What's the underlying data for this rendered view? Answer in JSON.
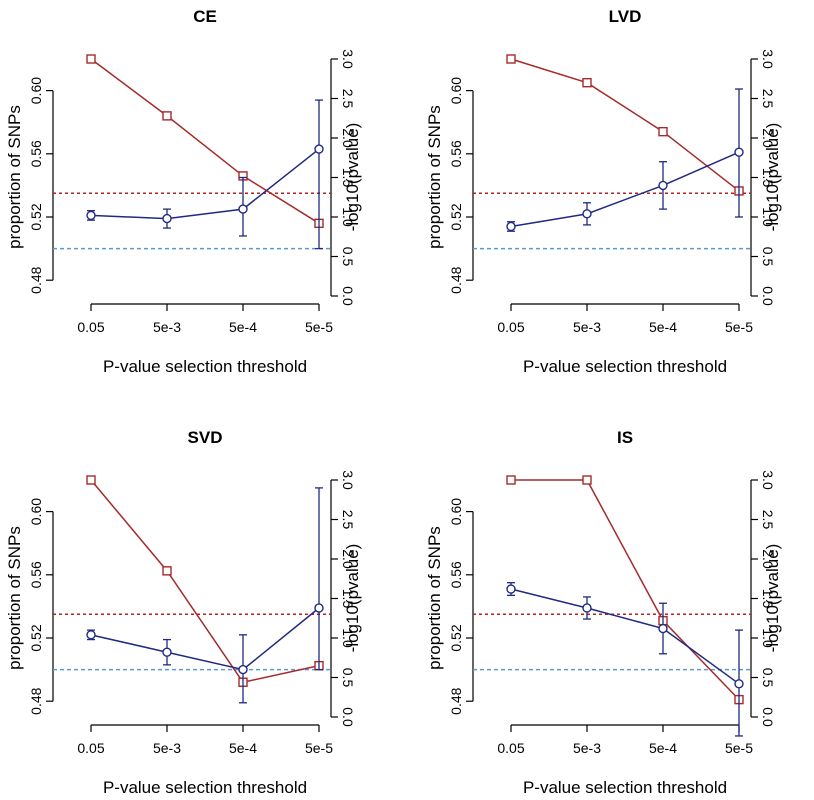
{
  "colors": {
    "red_series": "#a52a2a",
    "blue_series": "#1f2a80",
    "red_threshold": "#b22222",
    "blue_threshold": "#5b9bd5"
  },
  "chart_data": [
    {
      "type": "line",
      "title": "CE",
      "xlabel": "P-value selection threshold",
      "ylabel_left": "proportion of SNPs",
      "ylabel_right": "-log10(pvalue)",
      "categories": [
        "0.05",
        "5e-3",
        "5e-4",
        "5e-5"
      ],
      "ylim_left": [
        0.47,
        0.62
      ],
      "ylim_right": [
        0,
        3
      ],
      "left_ticks": [
        "0.48",
        "0.52",
        "0.56",
        "0.60"
      ],
      "right_ticks": [
        "0.0",
        "0.5",
        "1.0",
        "1.5",
        "2.0",
        "2.5",
        "3.0"
      ],
      "proportion": [
        {
          "value": 0.521,
          "low": 0.518,
          "high": 0.524
        },
        {
          "value": 0.519,
          "low": 0.513,
          "high": 0.525
        },
        {
          "value": 0.525,
          "low": 0.508,
          "high": 0.545
        },
        {
          "value": 0.563,
          "low": 0.5,
          "high": 0.594
        }
      ],
      "neglog10_pvalue": [
        3.0,
        2.28,
        1.52,
        0.92
      ],
      "threshold_proportion": 0.5,
      "threshold_neglog10": 1.3
    },
    {
      "type": "line",
      "title": "LVD",
      "xlabel": "P-value selection threshold",
      "ylabel_left": "proportion of SNPs",
      "ylabel_right": "-log10(pvalue)",
      "categories": [
        "0.05",
        "5e-3",
        "5e-4",
        "5e-5"
      ],
      "ylim_left": [
        0.47,
        0.62
      ],
      "ylim_right": [
        0,
        3
      ],
      "left_ticks": [
        "0.48",
        "0.52",
        "0.56",
        "0.60"
      ],
      "right_ticks": [
        "0.0",
        "0.5",
        "1.0",
        "1.5",
        "2.0",
        "2.5",
        "3.0"
      ],
      "proportion": [
        {
          "value": 0.514,
          "low": 0.511,
          "high": 0.517
        },
        {
          "value": 0.522,
          "low": 0.515,
          "high": 0.529
        },
        {
          "value": 0.54,
          "low": 0.525,
          "high": 0.555
        },
        {
          "value": 0.561,
          "low": 0.52,
          "high": 0.601
        }
      ],
      "neglog10_pvalue": [
        3.0,
        2.7,
        2.08,
        1.33
      ],
      "threshold_proportion": 0.5,
      "threshold_neglog10": 1.3
    },
    {
      "type": "line",
      "title": "SVD",
      "xlabel": "P-value selection threshold",
      "ylabel_left": "proportion of SNPs",
      "ylabel_right": "-log10(pvalue)",
      "categories": [
        "0.05",
        "5e-3",
        "5e-4",
        "5e-5"
      ],
      "ylim_left": [
        0.47,
        0.62
      ],
      "ylim_right": [
        0,
        3
      ],
      "left_ticks": [
        "0.48",
        "0.52",
        "0.56",
        "0.60"
      ],
      "right_ticks": [
        "0.0",
        "0.5",
        "1.0",
        "1.5",
        "2.0",
        "2.5",
        "3.0"
      ],
      "proportion": [
        {
          "value": 0.522,
          "low": 0.519,
          "high": 0.525
        },
        {
          "value": 0.511,
          "low": 0.503,
          "high": 0.519
        },
        {
          "value": 0.5,
          "low": 0.479,
          "high": 0.522
        },
        {
          "value": 0.539,
          "low": 0.5,
          "high": 0.615
        }
      ],
      "neglog10_pvalue": [
        3.0,
        1.85,
        0.44,
        0.65
      ],
      "threshold_proportion": 0.5,
      "threshold_neglog10": 1.3
    },
    {
      "type": "line",
      "title": "IS",
      "xlabel": "P-value selection threshold",
      "ylabel_left": "proportion of SNPs",
      "ylabel_right": "-log10(pvalue)",
      "categories": [
        "0.05",
        "5e-3",
        "5e-4",
        "5e-5"
      ],
      "ylim_left": [
        0.47,
        0.62
      ],
      "ylim_right": [
        0,
        3
      ],
      "left_ticks": [
        "0.48",
        "0.52",
        "0.56",
        "0.60"
      ],
      "right_ticks": [
        "0.0",
        "0.5",
        "1.0",
        "1.5",
        "2.0",
        "2.5",
        "3.0"
      ],
      "proportion": [
        {
          "value": 0.551,
          "low": 0.547,
          "high": 0.555
        },
        {
          "value": 0.539,
          "low": 0.532,
          "high": 0.546
        },
        {
          "value": 0.526,
          "low": 0.51,
          "high": 0.542
        },
        {
          "value": 0.491,
          "low": 0.458,
          "high": 0.525
        }
      ],
      "neglog10_pvalue": [
        3.0,
        3.0,
        1.22,
        0.22
      ],
      "threshold_proportion": 0.5,
      "threshold_neglog10": 1.3
    }
  ]
}
